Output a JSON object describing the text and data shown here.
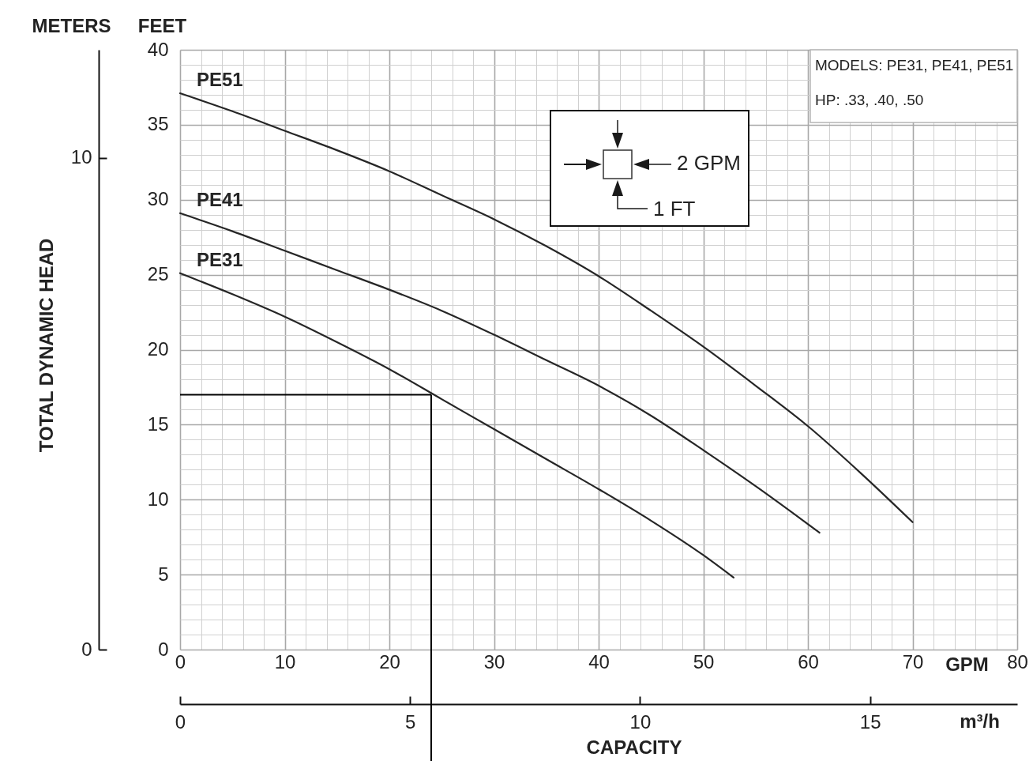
{
  "chart_data": {
    "type": "line",
    "xlabel": "GPM",
    "ylabel": "FEET",
    "x2label": "m³/h",
    "y2label": "METERS",
    "annotations": [
      "TOTAL DYNAMIC HEAD",
      "CAPACITY",
      "2 GPM",
      "1 FT",
      "MODELS: PE31, PE41, PE51",
      "HP: .33, .40, .50"
    ],
    "series": [
      {
        "name": "PE51",
        "color": "#262626",
        "x": [
          0,
          5,
          10,
          15,
          20,
          25,
          30,
          35,
          40,
          45,
          50,
          55,
          60,
          65,
          70
        ],
        "values": [
          37.1,
          35.9,
          34.6,
          33.3,
          31.9,
          30.3,
          28.7,
          26.9,
          24.9,
          22.6,
          20.2,
          17.6,
          14.9,
          11.8,
          8.5
        ]
      },
      {
        "name": "PE41",
        "color": "#262626",
        "x": [
          0,
          5,
          10,
          15,
          20,
          25,
          30,
          35,
          40,
          45,
          50,
          55,
          61.1
        ],
        "values": [
          29.1,
          27.9,
          26.6,
          25.3,
          24.0,
          22.6,
          21.0,
          19.3,
          17.6,
          15.6,
          13.3,
          10.9,
          7.8
        ]
      },
      {
        "name": "PE31",
        "color": "#262626",
        "x": [
          0,
          5,
          10,
          15,
          20,
          25,
          30,
          35,
          40,
          45,
          50,
          52.9
        ],
        "values": [
          25.1,
          23.7,
          22.2,
          20.5,
          18.7,
          16.7,
          14.7,
          12.7,
          10.7,
          8.6,
          6.3,
          4.8
        ]
      }
    ],
    "xlim": [
      0,
      80
    ],
    "xticks": [
      0,
      {
        "value": 2,
        "label": null
      },
      {
        "value": 4,
        "label": null
      },
      {
        "value": 6,
        "label": null
      },
      {
        "value": 8,
        "label": null
      },
      10,
      {
        "value": 12,
        "label": null
      },
      {
        "value": 14,
        "label": null
      },
      {
        "value": 16,
        "label": null
      },
      {
        "value": 18,
        "label": null
      },
      20,
      {
        "value": 22,
        "label": null
      },
      {
        "value": 24,
        "label": null
      },
      {
        "value": 26,
        "label": null
      },
      {
        "value": 28,
        "label": null
      },
      30,
      {
        "value": 32,
        "label": null
      },
      {
        "value": 34,
        "label": null
      },
      {
        "value": 36,
        "label": null
      },
      {
        "value": 38,
        "label": null
      },
      40,
      {
        "value": 42,
        "label": null
      },
      {
        "value": 44,
        "label": null
      },
      {
        "value": 46,
        "label": null
      },
      {
        "value": 48,
        "label": null
      },
      50,
      {
        "value": 52,
        "label": null
      },
      {
        "value": 54,
        "label": null
      },
      {
        "value": 56,
        "label": null
      },
      {
        "value": 58,
        "label": null
      },
      60,
      {
        "value": 62,
        "label": null
      },
      {
        "value": 64,
        "label": null
      },
      {
        "value": 66,
        "label": null
      },
      {
        "value": 68,
        "label": null
      },
      70,
      {
        "value": 72,
        "label": null
      },
      {
        "value": 74,
        "label": null
      },
      {
        "value": 76,
        "label": null
      },
      {
        "value": 78,
        "label": null
      },
      80
    ],
    "ylim": [
      0,
      40
    ],
    "yticks": [
      0,
      {
        "value": 1,
        "label": null
      },
      {
        "value": 2,
        "label": null
      },
      {
        "value": 3,
        "label": null
      },
      {
        "value": 4,
        "label": null
      },
      5,
      {
        "value": 6,
        "label": null
      },
      {
        "value": 7,
        "label": null
      },
      {
        "value": 8,
        "label": null
      },
      {
        "value": 9,
        "label": null
      },
      10,
      {
        "value": 11,
        "label": null
      },
      {
        "value": 12,
        "label": null
      },
      {
        "value": 13,
        "label": null
      },
      {
        "value": 14,
        "label": null
      },
      15,
      {
        "value": 16,
        "label": null
      },
      {
        "value": 17,
        "label": null
      },
      {
        "value": 18,
        "label": null
      },
      {
        "value": 19,
        "label": null
      },
      20,
      {
        "value": 21,
        "label": null
      },
      {
        "value": 22,
        "label": null
      },
      {
        "value": 23,
        "label": null
      },
      {
        "value": 24,
        "label": null
      },
      25,
      {
        "value": 26,
        "label": null
      },
      {
        "value": 27,
        "label": null
      },
      {
        "value": 28,
        "label": null
      },
      {
        "value": 29,
        "label": null
      },
      30,
      {
        "value": 31,
        "label": null
      },
      {
        "value": 32,
        "label": null
      },
      {
        "value": 33,
        "label": null
      },
      {
        "value": 34,
        "label": null
      },
      35,
      {
        "value": 36,
        "label": null
      },
      {
        "value": 37,
        "label": null
      },
      {
        "value": 38,
        "label": null
      },
      {
        "value": 39,
        "label": null
      },
      40
    ],
    "x2lim": [
      0,
      18.2
    ],
    "x2ticks": [
      0,
      5,
      10,
      15
    ],
    "y2lim": [
      0,
      12.2
    ],
    "y2ticks": [
      0,
      10
    ],
    "ref_lines": [
      {
        "axis": "y",
        "value": 17,
        "color": "#000000"
      },
      {
        "axis": "x",
        "value": 24,
        "color": "#000000"
      }
    ],
    "grid": true
  }
}
